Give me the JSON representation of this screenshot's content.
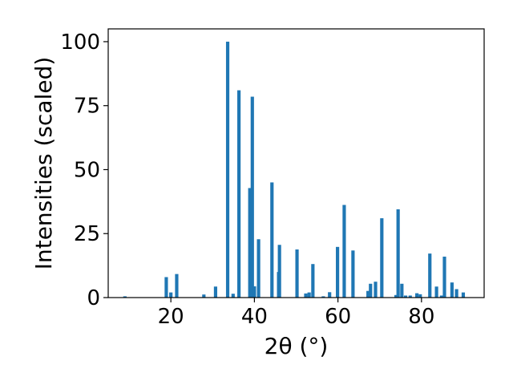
{
  "chart_data": {
    "type": "bar",
    "xlabel": "2θ (°)",
    "ylabel": "Intensities (scaled)",
    "xlim": [
      5,
      95
    ],
    "ylim": [
      0,
      105
    ],
    "x_ticks": [
      20,
      40,
      60,
      80
    ],
    "y_ticks": [
      0,
      25,
      50,
      75,
      100
    ],
    "grid": false,
    "bar_color": "#1f77b4",
    "bar_width": 0.8,
    "x": [
      9.0,
      18.9,
      20.0,
      21.4,
      27.9,
      30.7,
      33.6,
      34.9,
      36.3,
      38.9,
      39.5,
      40.0,
      41.0,
      44.2,
      45.8,
      46.0,
      50.2,
      52.3,
      53.1,
      54.0,
      56.5,
      58.0,
      59.9,
      61.5,
      63.6,
      67.2,
      67.8,
      69.0,
      70.5,
      73.9,
      74.4,
      75.3,
      76.2,
      77.3,
      78.9,
      79.7,
      82.0,
      83.6,
      84.8,
      85.5,
      87.3,
      88.4,
      90.0
    ],
    "values": [
      0.5,
      8.0,
      2.0,
      9.2,
      1.2,
      4.3,
      100.0,
      1.5,
      81.0,
      42.8,
      78.5,
      4.4,
      22.8,
      45.0,
      10.0,
      20.6,
      18.8,
      1.6,
      2.0,
      13.1,
      0.5,
      2.1,
      19.8,
      36.2,
      18.4,
      2.6,
      5.4,
      6.2,
      31.0,
      1.0,
      34.5,
      5.4,
      0.8,
      0.8,
      1.7,
      1.3,
      17.2,
      4.3,
      0.8,
      16.0,
      5.9,
      3.3,
      2.0
    ]
  }
}
